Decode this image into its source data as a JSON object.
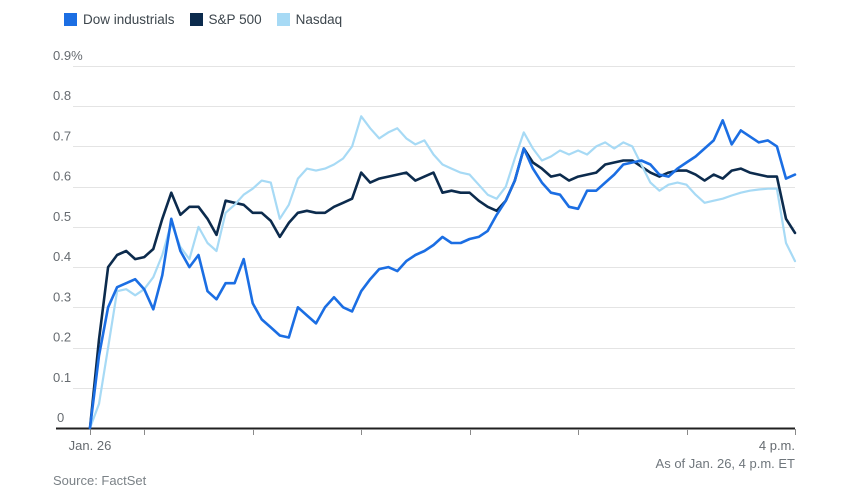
{
  "footer": {
    "as_of": "As of Jan. 26, 4 p.m. ET",
    "source": "Source: FactSet"
  },
  "colors": {
    "dow": "#1b6ee3",
    "sp500": "#0c2b4d",
    "nasdaq": "#a7daf5",
    "gridline": "#e4e4e4",
    "axis": "#202020",
    "tick": "#8a8a8a",
    "axis_label": "#666b70"
  },
  "chart_data": {
    "type": "line",
    "title": "",
    "x_unit": "minutes since 9:30 a.m. ET",
    "x_step": 5,
    "x_range": [
      0,
      390
    ],
    "x_tick_minutes": [
      0,
      30,
      90,
      150,
      210,
      270,
      330,
      390
    ],
    "x_start_label": "Jan. 26",
    "x_end_label": "4 p.m.",
    "ylim": [
      0,
      0.9
    ],
    "y_tick_labels": [
      "0.9%",
      "0.8",
      "0.7",
      "0.6",
      "0.5",
      "0.4",
      "0.3",
      "0.2",
      "0.1",
      "0"
    ],
    "y_tick_values": [
      0.9,
      0.8,
      0.7,
      0.6,
      0.5,
      0.4,
      0.3,
      0.2,
      0.1,
      0
    ],
    "grid": true,
    "legend_position": "top-left",
    "series": [
      {
        "key": "dow",
        "name": "Dow industrials",
        "color": "#1b6ee3",
        "values": [
          0,
          0.18,
          0.3,
          0.35,
          0.36,
          0.37,
          0.345,
          0.295,
          0.38,
          0.52,
          0.44,
          0.4,
          0.43,
          0.34,
          0.32,
          0.36,
          0.36,
          0.42,
          0.31,
          0.27,
          0.25,
          0.23,
          0.225,
          0.3,
          0.28,
          0.26,
          0.3,
          0.325,
          0.3,
          0.29,
          0.34,
          0.37,
          0.395,
          0.4,
          0.39,
          0.415,
          0.43,
          0.44,
          0.455,
          0.475,
          0.46,
          0.46,
          0.47,
          0.475,
          0.49,
          0.53,
          0.565,
          0.615,
          0.695,
          0.645,
          0.61,
          0.585,
          0.58,
          0.55,
          0.545,
          0.59,
          0.59,
          0.61,
          0.63,
          0.655,
          0.66,
          0.665,
          0.655,
          0.63,
          0.625,
          0.645,
          0.66,
          0.675,
          0.695,
          0.715,
          0.765,
          0.705,
          0.74,
          0.725,
          0.71,
          0.715,
          0.7,
          0.62,
          0.63
        ]
      },
      {
        "key": "sp500",
        "name": "S&P 500",
        "color": "#0c2b4d",
        "values": [
          0,
          0.22,
          0.4,
          0.43,
          0.44,
          0.42,
          0.425,
          0.445,
          0.52,
          0.585,
          0.53,
          0.55,
          0.55,
          0.52,
          0.48,
          0.565,
          0.56,
          0.555,
          0.535,
          0.535,
          0.515,
          0.475,
          0.51,
          0.535,
          0.54,
          0.535,
          0.535,
          0.55,
          0.56,
          0.57,
          0.635,
          0.61,
          0.62,
          0.625,
          0.63,
          0.635,
          0.615,
          0.625,
          0.635,
          0.585,
          0.59,
          0.585,
          0.585,
          0.565,
          0.55,
          0.54,
          0.565,
          0.615,
          0.695,
          0.66,
          0.645,
          0.625,
          0.63,
          0.615,
          0.625,
          0.63,
          0.635,
          0.655,
          0.66,
          0.665,
          0.665,
          0.65,
          0.635,
          0.625,
          0.635,
          0.64,
          0.64,
          0.63,
          0.615,
          0.63,
          0.62,
          0.64,
          0.645,
          0.635,
          0.63,
          0.625,
          0.625,
          0.52,
          0.485
        ]
      },
      {
        "key": "nasdaq",
        "name": "Nasdaq",
        "color": "#a7daf5",
        "values": [
          0,
          0.06,
          0.2,
          0.34,
          0.345,
          0.33,
          0.345,
          0.375,
          0.43,
          0.51,
          0.45,
          0.42,
          0.5,
          0.46,
          0.44,
          0.535,
          0.555,
          0.58,
          0.595,
          0.615,
          0.61,
          0.52,
          0.555,
          0.62,
          0.645,
          0.64,
          0.645,
          0.655,
          0.67,
          0.7,
          0.775,
          0.745,
          0.72,
          0.735,
          0.745,
          0.72,
          0.705,
          0.715,
          0.68,
          0.655,
          0.645,
          0.635,
          0.63,
          0.605,
          0.58,
          0.57,
          0.6,
          0.67,
          0.735,
          0.695,
          0.665,
          0.675,
          0.69,
          0.68,
          0.69,
          0.68,
          0.7,
          0.71,
          0.695,
          0.71,
          0.7,
          0.655,
          0.61,
          0.59,
          0.605,
          0.61,
          0.605,
          0.58,
          0.56,
          0.565,
          0.57,
          0.578,
          0.585,
          0.59,
          0.593,
          0.595,
          0.595,
          0.46,
          0.415
        ]
      }
    ]
  }
}
